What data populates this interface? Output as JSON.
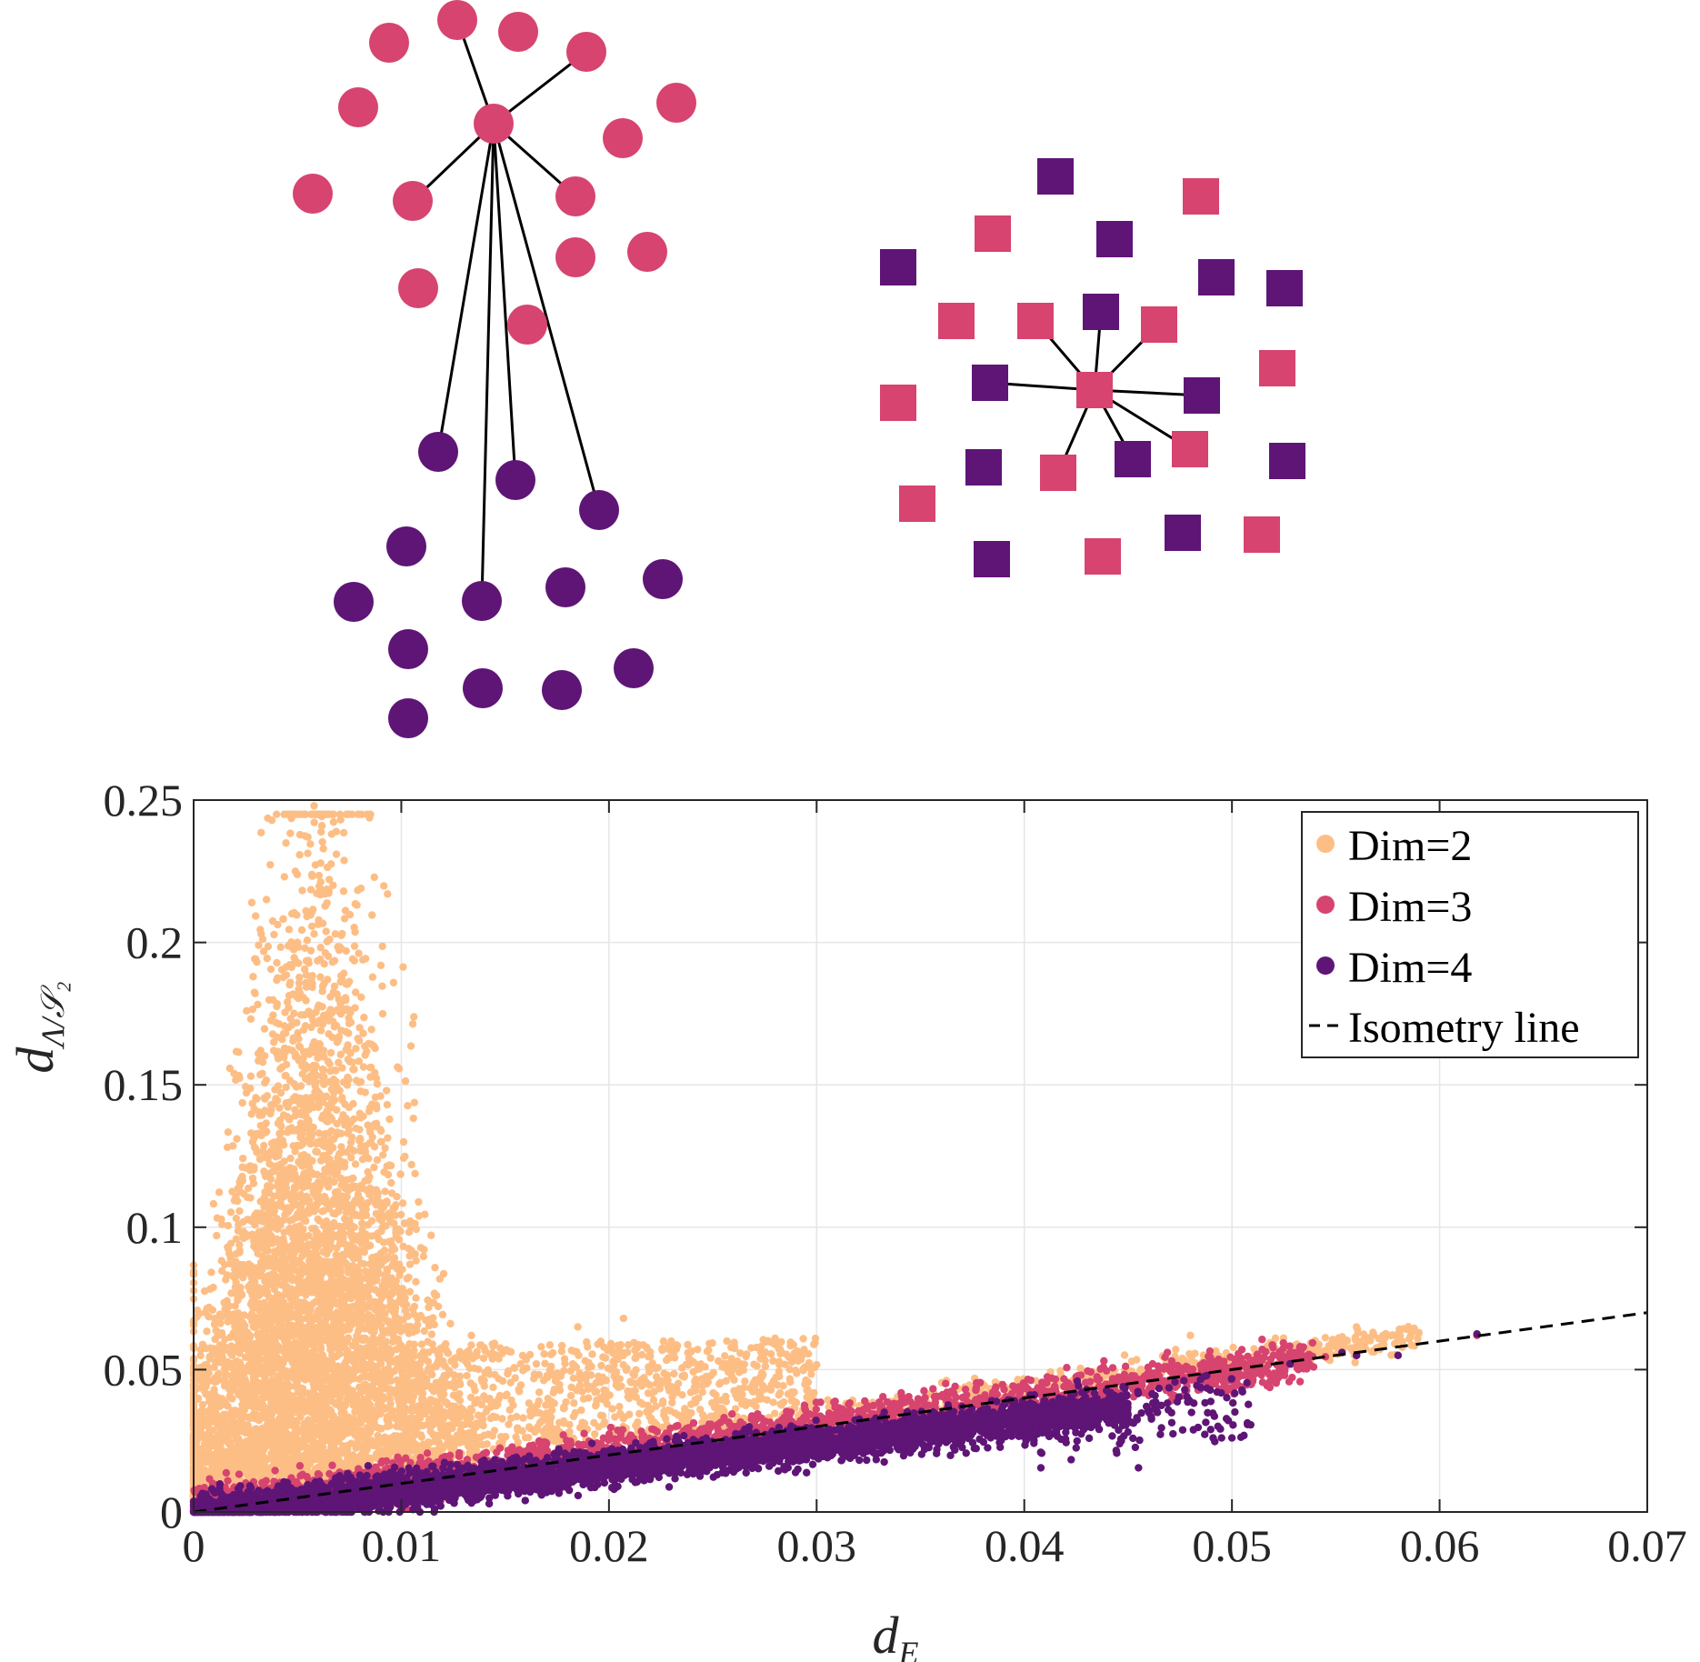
{
  "colors": {
    "dim2": "#FDBE85",
    "dim3": "#D6446F",
    "dim4": "#5E1576",
    "isometry": "#000000",
    "grid": "#e6e6e6",
    "axis": "#262626",
    "edge": "#000000"
  },
  "diagram": {
    "left_cluster": {
      "marker": "circle",
      "groups": [
        "dim3",
        "dim4"
      ]
    },
    "right_cluster": {
      "marker": "square",
      "groups": [
        "dim3",
        "dim4"
      ]
    }
  },
  "chart_data": {
    "type": "scatter",
    "title": "",
    "xlabel": "d",
    "xlabel_sub": "E",
    "ylabel": "d",
    "ylabel_sub": "Λ/𝒮₂",
    "xlim": [
      0,
      0.07
    ],
    "ylim": [
      0,
      0.25
    ],
    "grid": true,
    "x_ticks": [
      0,
      0.01,
      0.02,
      0.03,
      0.04,
      0.05,
      0.06,
      0.07
    ],
    "x_tick_labels": [
      "0",
      "0.01",
      "0.02",
      "0.03",
      "0.04",
      "0.05",
      "0.06",
      "0.07"
    ],
    "y_ticks": [
      0,
      0.05,
      0.1,
      0.15,
      0.2,
      0.25
    ],
    "y_tick_labels": [
      "0",
      "0.05",
      "0.1",
      "0.15",
      "0.2",
      "0.25"
    ],
    "legend_position": "top-right",
    "series": [
      {
        "name": "Dim=2",
        "color_key": "dim2",
        "description_points": [
          [
            0.002,
            0.08
          ],
          [
            0.004,
            0.15
          ],
          [
            0.005,
            0.2
          ],
          [
            0.006,
            0.248
          ],
          [
            0.0055,
            0.237
          ],
          [
            0.008,
            0.12
          ],
          [
            0.01,
            0.08
          ],
          [
            0.015,
            0.05
          ],
          [
            0.02,
            0.035
          ],
          [
            0.023,
            0.06
          ],
          [
            0.028,
            0.06
          ],
          [
            0.035,
            0.04
          ],
          [
            0.04,
            0.055
          ],
          [
            0.05,
            0.062
          ],
          [
            0.059,
            0.063
          ]
        ]
      },
      {
        "name": "Dim=3",
        "color_key": "dim3",
        "description_points": [
          [
            0.005,
            0.012
          ],
          [
            0.01,
            0.02
          ],
          [
            0.02,
            0.03
          ],
          [
            0.03,
            0.04
          ],
          [
            0.04,
            0.05
          ],
          [
            0.05,
            0.055
          ],
          [
            0.054,
            0.055
          ],
          [
            0.062,
            0.062
          ]
        ]
      },
      {
        "name": "Dim=4",
        "color_key": "dim4",
        "description_points": [
          [
            0.005,
            0.005
          ],
          [
            0.01,
            0.01
          ],
          [
            0.02,
            0.015
          ],
          [
            0.03,
            0.022
          ],
          [
            0.04,
            0.03
          ],
          [
            0.045,
            0.015
          ],
          [
            0.05,
            0.03
          ],
          [
            0.056,
            0.055
          ],
          [
            0.062,
            0.062
          ]
        ]
      },
      {
        "name": "Isometry line",
        "color_key": "isometry",
        "style": "dashed",
        "x": [
          0,
          0.07
        ],
        "y": [
          0,
          0.07
        ]
      }
    ]
  }
}
